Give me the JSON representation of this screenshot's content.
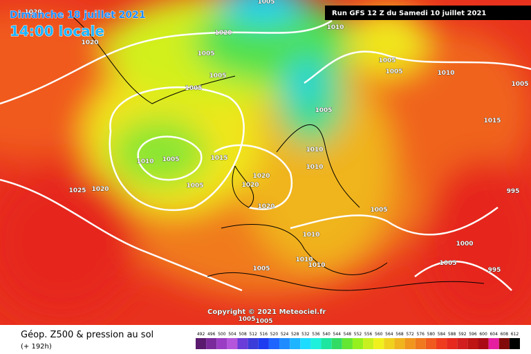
{
  "header": {
    "date": "Dimanche 18 juillet 2021",
    "time": "14:00 locale",
    "run": "Run GFS 12 Z du Samedi 10 juillet 2021"
  },
  "copyright": "Copyright © 2021 Meteociel.fr",
  "footer": {
    "title": "Géop. Z500 & pression au sol",
    "lead": "(+ 192h)"
  },
  "scale": {
    "labels": [
      "492",
      "496",
      "500",
      "504",
      "508",
      "512",
      "516",
      "520",
      "524",
      "528",
      "532",
      "536",
      "540",
      "544",
      "548",
      "552",
      "556",
      "560",
      "564",
      "568",
      "572",
      "576",
      "580",
      "584",
      "588",
      "592",
      "596",
      "600",
      "604",
      "608",
      "612"
    ],
    "colors": [
      "#5a1a6e",
      "#7a2a9a",
      "#9b3cc4",
      "#b455dc",
      "#6a3cd8",
      "#3c3cd8",
      "#1e3cf0",
      "#1e64ff",
      "#1e8cff",
      "#1eb4ff",
      "#1edcff",
      "#1ef0dc",
      "#1ee6a0",
      "#32dc64",
      "#64e632",
      "#96f01e",
      "#c8f01e",
      "#f0f01e",
      "#f0d21e",
      "#f0b41e",
      "#f0961e",
      "#f0781e",
      "#f05a1e",
      "#f03c1e",
      "#e6281e",
      "#d21e1e",
      "#be1414",
      "#aa0a14",
      "#e61ea0",
      "#820a0a",
      "#000000"
    ]
  },
  "isobars": [
    "1020",
    "1005",
    "1010",
    "1020",
    "1020",
    "1005",
    "1005",
    "1005",
    "1010",
    "1005",
    "1005",
    "1005",
    "1005",
    "1015",
    "1010",
    "1005",
    "1015",
    "1010",
    "1010",
    "1020",
    "1020",
    "1005",
    "1025",
    "1020",
    "995",
    "1005",
    "1020",
    "1010",
    "1000",
    "1010",
    "1010",
    "1005",
    "1005",
    "995",
    "1005",
    "1005"
  ]
}
